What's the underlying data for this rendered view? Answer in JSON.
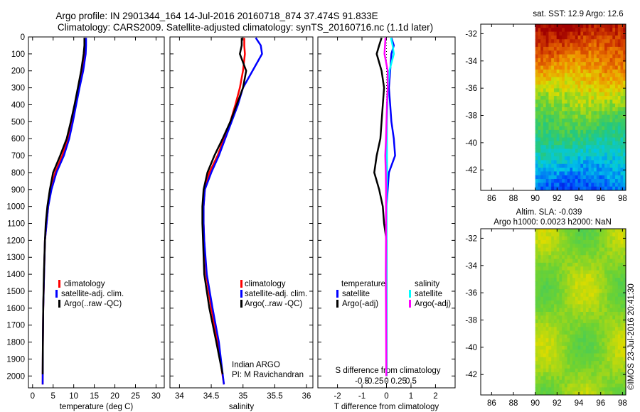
{
  "header": {
    "line1": "Argo profile: IN 2901344_164 14-Jul-2016 20160718_874 37.474S 91.833E",
    "line2": "Climatology: CARS2009. Satellite-adjusted climatology: synTS_20160716.nc (1.1d later)"
  },
  "colors": {
    "climatology": "#ff0000",
    "satellite": "#0000ff",
    "argo": "#000000",
    "sal_satellite": "#00ffff",
    "sal_argo": "#ff00ff"
  },
  "chart_data": [
    {
      "type": "line",
      "name": "temperature-profile",
      "xlabel": "temperature (deg C)",
      "ylabel": "",
      "xlim": [
        -1,
        32
      ],
      "ylim": [
        2070,
        0
      ],
      "xticks": [
        0,
        5,
        10,
        15,
        20,
        25,
        30
      ],
      "yticks": [
        0,
        100,
        200,
        300,
        400,
        500,
        600,
        700,
        800,
        900,
        1000,
        1100,
        1200,
        1300,
        1400,
        1500,
        1600,
        1700,
        1800,
        1900,
        2000
      ],
      "legend": [
        "climatology",
        "satellite-adj. clim.",
        "Argo(..raw -QC)"
      ],
      "series": [
        {
          "name": "climatology",
          "color": "#ff0000",
          "x": [
            12.8,
            12.8,
            12.6,
            12.0,
            11.2,
            10.4,
            9.5,
            8.6,
            7.2,
            5.5,
            4.5,
            3.8,
            3.4,
            3.0,
            2.8,
            2.6,
            2.5,
            2.45
          ],
          "y": [
            5,
            50,
            100,
            200,
            300,
            400,
            500,
            600,
            700,
            800,
            900,
            1000,
            1100,
            1200,
            1400,
            1600,
            1800,
            2050
          ]
        },
        {
          "name": "satellite-adj. clim.",
          "color": "#0000ff",
          "x": [
            13.0,
            13.0,
            12.9,
            12.3,
            11.4,
            10.6,
            9.8,
            8.9,
            7.6,
            5.8,
            4.6,
            3.8,
            3.4,
            3.0,
            2.8,
            2.6,
            2.5,
            2.45
          ],
          "y": [
            5,
            50,
            100,
            200,
            300,
            400,
            500,
            600,
            700,
            800,
            900,
            1000,
            1100,
            1200,
            1400,
            1600,
            1800,
            2050
          ]
        },
        {
          "name": "Argo(..raw -QC)",
          "color": "#000000",
          "x": [
            12.6,
            12.6,
            12.4,
            11.8,
            11.0,
            10.2,
            9.3,
            8.3,
            6.7,
            5.0,
            4.2,
            3.6,
            3.2,
            3.0,
            2.75,
            2.6,
            2.5,
            2.45
          ],
          "y": [
            5,
            50,
            100,
            200,
            300,
            400,
            500,
            600,
            700,
            800,
            900,
            1000,
            1100,
            1200,
            1400,
            1600,
            1800,
            1990
          ]
        }
      ]
    },
    {
      "type": "line",
      "name": "salinity-profile",
      "xlabel": "salinity",
      "ylabel": "",
      "xlim": [
        33.85,
        36.1
      ],
      "ylim": [
        2070,
        0
      ],
      "xticks": [
        34,
        34.5,
        35,
        35.5,
        36
      ],
      "xticklabels": [
        "34",
        "34.5",
        "35",
        "35.5",
        "36"
      ],
      "legend": [
        "climatology",
        "satellite-adj. clim.",
        "Argo(..raw -QC)"
      ],
      "annotation": [
        "Indian ARGO",
        "PI: M Ravichandran"
      ],
      "series": [
        {
          "name": "climatology",
          "color": "#ff0000",
          "x": [
            35.02,
            35.02,
            35.03,
            35.0,
            34.95,
            34.88,
            34.8,
            34.7,
            34.6,
            34.47,
            34.4,
            34.38,
            34.38,
            34.39,
            34.42,
            34.5,
            34.6,
            34.7
          ],
          "y": [
            5,
            50,
            100,
            200,
            300,
            400,
            500,
            600,
            700,
            800,
            900,
            1000,
            1100,
            1200,
            1400,
            1600,
            1800,
            2050
          ]
        },
        {
          "name": "satellite-adj. clim.",
          "color": "#0000ff",
          "x": [
            35.2,
            35.28,
            35.3,
            35.15,
            35.0,
            34.92,
            34.82,
            34.72,
            34.62,
            34.5,
            34.4,
            34.38,
            34.38,
            34.39,
            34.43,
            34.52,
            34.62,
            34.7
          ],
          "y": [
            5,
            50,
            100,
            200,
            300,
            400,
            500,
            600,
            700,
            800,
            900,
            1000,
            1100,
            1200,
            1400,
            1600,
            1800,
            2050
          ]
        },
        {
          "name": "Argo(..raw -QC)",
          "color": "#000000",
          "x": [
            34.98,
            34.98,
            34.95,
            35.05,
            35.0,
            34.9,
            34.8,
            34.68,
            34.55,
            34.44,
            34.38,
            34.36,
            34.36,
            34.37,
            34.39,
            34.47,
            34.58,
            34.68
          ],
          "y": [
            5,
            50,
            100,
            200,
            300,
            400,
            500,
            600,
            700,
            800,
            900,
            1000,
            1100,
            1200,
            1400,
            1600,
            1800,
            1990
          ]
        }
      ]
    },
    {
      "type": "line",
      "name": "difference-profile",
      "xlabel": "T difference from climatology",
      "xlabel2": "S difference from climatology",
      "xlim": [
        -2.8,
        2.8
      ],
      "ylim": [
        2070,
        0
      ],
      "xticks": [
        -2,
        -1,
        0,
        1,
        2
      ],
      "xticklabels": [
        "-2",
        "-1",
        "0",
        "1",
        "2"
      ],
      "sticks": [
        -0.5,
        -0.25,
        0,
        0.25,
        0.5
      ],
      "sticklabels": [
        "-0.5",
        "-0.25",
        "0",
        "0.25",
        "0.5"
      ],
      "legend_groups": [
        {
          "title": "temperature",
          "items": [
            "satellite",
            "Argo(-adj)"
          ]
        },
        {
          "title": "salinity",
          "items": [
            "satellite",
            "Argo(-adj)"
          ]
        }
      ],
      "series": [
        {
          "name": "temperature satellite",
          "color": "#0000ff",
          "x": [
            0.2,
            0.3,
            0.2,
            0.15,
            0.1,
            0.15,
            0.2,
            0.3,
            0.35,
            0.1,
            0.05,
            0.0,
            0.0,
            0.0,
            0.0,
            0.0,
            0.0
          ],
          "y": [
            5,
            50,
            100,
            200,
            300,
            400,
            500,
            600,
            700,
            800,
            900,
            1000,
            1100,
            1200,
            1400,
            1600,
            2000
          ]
        },
        {
          "name": "temperature Argo(-adj)",
          "color": "#000000",
          "x": [
            -0.2,
            -0.3,
            -0.4,
            -0.2,
            -0.1,
            -0.15,
            -0.2,
            -0.25,
            -0.4,
            -0.5,
            -0.3,
            -0.15,
            -0.1,
            0.0,
            0.0,
            0.0,
            0.0
          ],
          "y": [
            5,
            50,
            100,
            200,
            300,
            400,
            500,
            600,
            700,
            800,
            900,
            1000,
            1100,
            1200,
            1400,
            1600,
            2000
          ]
        },
        {
          "name": "salinity satellite",
          "color": "#00ffff",
          "x": [
            0.18,
            0.25,
            0.3,
            0.12,
            0.05,
            0.04,
            0.02,
            0.02,
            0.02,
            0.03,
            0.01,
            0.0,
            0.0,
            0.0,
            0.0,
            0.0,
            0.0
          ],
          "y": [
            5,
            50,
            100,
            200,
            300,
            400,
            500,
            600,
            700,
            800,
            900,
            1000,
            1100,
            1200,
            1400,
            1600,
            2000
          ]
        },
        {
          "name": "salinity Argo(-adj)",
          "color": "#ff00ff",
          "x": [
            -0.04,
            -0.06,
            -0.08,
            0.05,
            0.05,
            0.02,
            0.0,
            -0.02,
            -0.05,
            -0.03,
            -0.02,
            -0.02,
            -0.02,
            -0.02,
            -0.03,
            -0.02,
            -0.01
          ],
          "y": [
            5,
            50,
            100,
            200,
            300,
            400,
            500,
            600,
            700,
            800,
            900,
            1000,
            1100,
            1200,
            1400,
            1600,
            2000
          ]
        }
      ]
    },
    {
      "type": "heatmap",
      "name": "sst-map",
      "title": "sat. SST: 12.9  Argo: 12.6",
      "xlim": [
        85,
        98.3
      ],
      "ylim": [
        -43.5,
        -31.3
      ],
      "xticks": [
        86,
        88,
        90,
        92,
        94,
        96,
        98
      ],
      "yticks": [
        -42,
        -40,
        -38,
        -36,
        -34,
        -32
      ],
      "data_extent_x": [
        90,
        98.3
      ]
    },
    {
      "type": "heatmap",
      "name": "sla-map",
      "title": "Altim. SLA: -0.039",
      "subtitle": "Argo h1000: 0.0023 h2000: NaN",
      "xlim": [
        85,
        98.3
      ],
      "ylim": [
        -43.5,
        -31.3
      ],
      "xticks": [
        86,
        88,
        90,
        92,
        94,
        96,
        98
      ],
      "yticks": [
        -42,
        -40,
        -38,
        -36,
        -34,
        -32
      ],
      "data_extent_x": [
        90,
        98.3
      ]
    }
  ],
  "footer": {
    "credit": "©IMOS 23-Jul-2016 20:41:30"
  }
}
